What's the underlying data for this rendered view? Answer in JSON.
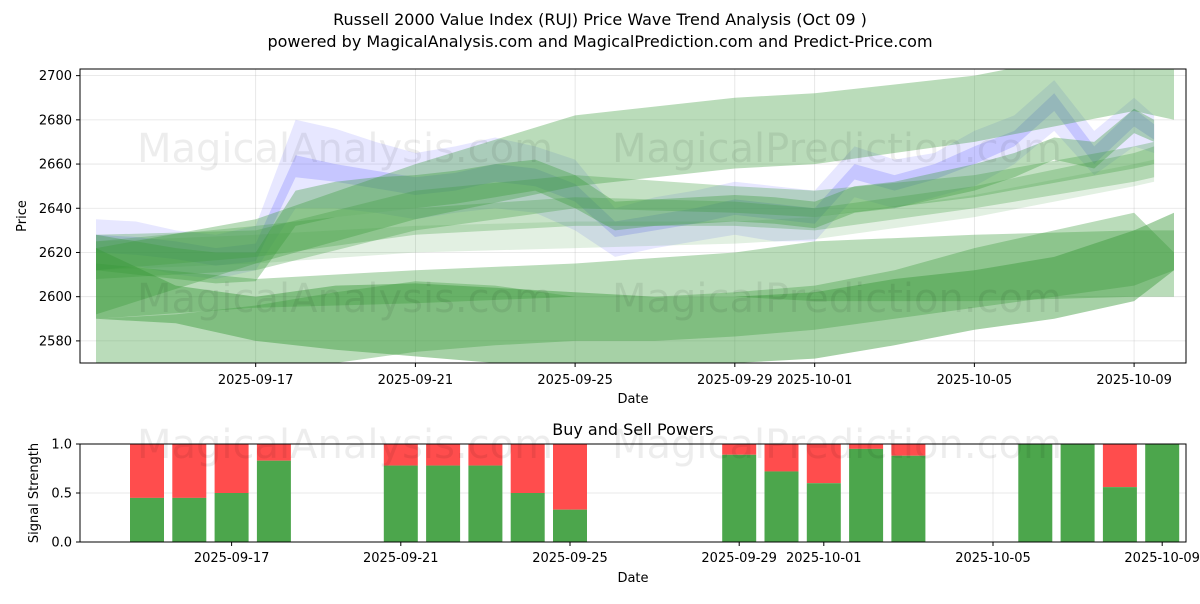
{
  "chart_data": [
    {
      "type": "area",
      "title_line1": "Russell 2000 Value Index (RUJ) Price Wave Trend Analysis (Oct 09 )",
      "title_line2": "powered by MagicalAnalysis.com and MagicalPrediction.com and Predict-Price.com",
      "xlabel": "Date",
      "ylabel": "Price",
      "ylim": [
        2570,
        2703
      ],
      "xlim": [
        -2.4,
        25.3
      ],
      "yticks": [
        2580,
        2600,
        2620,
        2640,
        2660,
        2680,
        2700
      ],
      "xticks": [
        {
          "day": 2,
          "label": "2025-09-17"
        },
        {
          "day": 6,
          "label": "2025-09-21"
        },
        {
          "day": 10,
          "label": "2025-09-25"
        },
        {
          "day": 14,
          "label": "2025-09-29"
        },
        {
          "day": 16,
          "label": "2025-10-01"
        },
        {
          "day": 20,
          "label": "2025-10-05"
        },
        {
          "day": 24,
          "label": "2025-10-09"
        }
      ],
      "grid": true,
      "watermarks": [
        "MagicalAnalysis.com",
        "MagicalPrediction.com"
      ],
      "colors": {
        "blue": "#7b7bff",
        "green": "#3a9a3a"
      },
      "series": [
        {
          "name": "price-wave-blue-outer",
          "color": "blue",
          "opacity": 0.18,
          "x": [
            -2,
            -1,
            0,
            1,
            2,
            3,
            4,
            5,
            6,
            7,
            8,
            9,
            10,
            11,
            12,
            13,
            14,
            15,
            16,
            17,
            18,
            19,
            20,
            21,
            22,
            23,
            24,
            24.5
          ],
          "upper": [
            2635,
            2634,
            2630,
            2628,
            2632,
            2680,
            2676,
            2670,
            2665,
            2668,
            2672,
            2668,
            2662,
            2640,
            2645,
            2648,
            2652,
            2650,
            2648,
            2668,
            2662,
            2665,
            2675,
            2682,
            2698,
            2675,
            2690,
            2682
          ],
          "lower": [
            2612,
            2614,
            2610,
            2608,
            2612,
            2640,
            2640,
            2638,
            2635,
            2638,
            2640,
            2638,
            2630,
            2618,
            2622,
            2625,
            2628,
            2625,
            2625,
            2645,
            2640,
            2645,
            2650,
            2660,
            2675,
            2655,
            2668,
            2665
          ]
        },
        {
          "name": "price-wave-blue-core",
          "color": "blue",
          "opacity": 0.3,
          "x": [
            -2,
            -1,
            0,
            1,
            2,
            3,
            4,
            5,
            6,
            7,
            8,
            9,
            10,
            11,
            12,
            13,
            14,
            15,
            16,
            17,
            18,
            19,
            20,
            21,
            22,
            23,
            24,
            24.5
          ],
          "upper": [
            2628,
            2627,
            2625,
            2622,
            2624,
            2664,
            2660,
            2657,
            2654,
            2656,
            2660,
            2658,
            2651,
            2634,
            2637,
            2640,
            2644,
            2642,
            2640,
            2660,
            2655,
            2660,
            2668,
            2675,
            2692,
            2668,
            2685,
            2678
          ],
          "lower": [
            2620,
            2619,
            2617,
            2614,
            2616,
            2654,
            2652,
            2649,
            2646,
            2648,
            2652,
            2650,
            2643,
            2627,
            2630,
            2633,
            2637,
            2635,
            2633,
            2653,
            2648,
            2653,
            2660,
            2668,
            2684,
            2660,
            2677,
            2671
          ]
        },
        {
          "name": "trend-band-1",
          "color": "green",
          "opacity": 0.35,
          "x": [
            -2,
            2,
            6,
            10,
            14,
            16,
            20,
            24,
            25
          ],
          "upper": [
            2622,
            2635,
            2660,
            2682,
            2690,
            2692,
            2700,
            2714,
            2708
          ],
          "lower": [
            2592,
            2615,
            2635,
            2650,
            2658,
            2660,
            2670,
            2684,
            2680
          ]
        },
        {
          "name": "trend-band-2",
          "color": "green",
          "opacity": 0.3,
          "x": [
            -2,
            2,
            6,
            10,
            14,
            16,
            20,
            24,
            24.5
          ],
          "upper": [
            2628,
            2630,
            2648,
            2655,
            2650,
            2648,
            2655,
            2668,
            2670
          ],
          "lower": [
            2608,
            2612,
            2630,
            2640,
            2638,
            2636,
            2645,
            2658,
            2660
          ]
        },
        {
          "name": "trend-band-3",
          "color": "green",
          "opacity": 0.28,
          "x": [
            -2,
            2,
            6,
            10,
            14,
            16,
            20,
            24,
            24.5
          ],
          "upper": [
            2625,
            2632,
            2640,
            2645,
            2643,
            2640,
            2650,
            2665,
            2668
          ],
          "lower": [
            2612,
            2618,
            2628,
            2632,
            2632,
            2630,
            2640,
            2652,
            2654
          ]
        },
        {
          "name": "trend-band-4",
          "color": "green",
          "opacity": 0.15,
          "x": [
            -2,
            2,
            6,
            10,
            14,
            16,
            20,
            24,
            24.5
          ],
          "upper": [
            2625,
            2628,
            2632,
            2634,
            2634,
            2636,
            2646,
            2660,
            2662
          ],
          "lower": [
            2612,
            2615,
            2620,
            2622,
            2624,
            2626,
            2636,
            2650,
            2652
          ]
        },
        {
          "name": "price-wave-green",
          "color": "green",
          "opacity": 0.35,
          "x": [
            -2,
            -1,
            0,
            1,
            2,
            3,
            4,
            5,
            6,
            7,
            8,
            9,
            10,
            11,
            12,
            13,
            14,
            15,
            16,
            17,
            18,
            19,
            20,
            21,
            22,
            23,
            24,
            24.5
          ],
          "upper": [
            2628,
            2625,
            2622,
            2620,
            2620,
            2648,
            2652,
            2654,
            2655,
            2657,
            2660,
            2662,
            2655,
            2643,
            2644,
            2645,
            2646,
            2645,
            2643,
            2650,
            2652,
            2656,
            2660,
            2665,
            2672,
            2670,
            2685,
            2680
          ],
          "lower": [
            2612,
            2610,
            2608,
            2606,
            2607,
            2632,
            2636,
            2638,
            2640,
            2642,
            2645,
            2648,
            2640,
            2630,
            2632,
            2633,
            2634,
            2633,
            2631,
            2638,
            2640,
            2644,
            2648,
            2654,
            2662,
            2658,
            2674,
            2670
          ]
        },
        {
          "name": "lower-band-1",
          "color": "green",
          "opacity": 0.35,
          "x": [
            -2,
            2,
            6,
            10,
            14,
            16,
            20,
            24,
            25
          ],
          "upper": [
            2615,
            2608,
            2612,
            2615,
            2620,
            2625,
            2628,
            2630,
            2630
          ],
          "lower": [
            2590,
            2595,
            2597,
            2600,
            2600,
            2598,
            2598,
            2600,
            2600
          ]
        },
        {
          "name": "lower-band-2",
          "color": "green",
          "opacity": 0.45,
          "x": [
            -2,
            0,
            2,
            4,
            6,
            8,
            10,
            12,
            14,
            16,
            18,
            20,
            22,
            24,
            25
          ],
          "upper": [
            2622,
            2605,
            2600,
            2605,
            2606,
            2604,
            2602,
            2600,
            2600,
            2602,
            2608,
            2612,
            2618,
            2630,
            2638
          ],
          "lower": [
            2590,
            2588,
            2580,
            2576,
            2573,
            2570,
            2568,
            2568,
            2570,
            2572,
            2578,
            2585,
            2590,
            2598,
            2612
          ]
        },
        {
          "name": "lower-band-3",
          "color": "green",
          "opacity": 0.35,
          "x": [
            -2,
            0,
            2,
            4,
            6,
            8,
            10,
            12,
            14,
            16,
            18,
            20,
            22,
            24,
            25
          ],
          "upper": [
            2590,
            2592,
            2596,
            2602,
            2607,
            2605,
            2600,
            2600,
            2602,
            2605,
            2612,
            2622,
            2630,
            2638,
            2620
          ],
          "lower": [
            2560,
            2562,
            2566,
            2570,
            2575,
            2578,
            2580,
            2580,
            2582,
            2585,
            2590,
            2595,
            2600,
            2605,
            2612
          ]
        }
      ]
    },
    {
      "type": "bar",
      "title": "Buy and Sell Powers",
      "xlabel": "Date",
      "ylabel": "Signal Strength",
      "ylim": [
        0,
        1.0
      ],
      "yticks": [
        {
          "v": 0.0,
          "label": "0.0"
        },
        {
          "v": 0.5,
          "label": "0.5"
        },
        {
          "v": 1.0,
          "label": "1.0"
        }
      ],
      "xticks": [
        {
          "day": 2,
          "label": "2025-09-17"
        },
        {
          "day": 6,
          "label": "2025-09-21"
        },
        {
          "day": 10,
          "label": "2025-09-25"
        },
        {
          "day": 14,
          "label": "2025-09-29"
        },
        {
          "day": 16,
          "label": "2025-10-01"
        },
        {
          "day": 20,
          "label": "2025-10-05"
        },
        {
          "day": 24,
          "label": "2025-10-09"
        }
      ],
      "series": [
        {
          "name": "Buy",
          "color": "#4ca64c"
        },
        {
          "name": "Sell",
          "color": "#ff4d4d"
        }
      ],
      "bars": [
        {
          "day": 0,
          "buy": 0.45
        },
        {
          "day": 1,
          "buy": 0.45
        },
        {
          "day": 2,
          "buy": 0.5
        },
        {
          "day": 3,
          "buy": 0.83
        },
        {
          "day": 6,
          "buy": 0.78
        },
        {
          "day": 7,
          "buy": 0.78
        },
        {
          "day": 8,
          "buy": 0.78
        },
        {
          "day": 9,
          "buy": 0.5
        },
        {
          "day": 10,
          "buy": 0.33
        },
        {
          "day": 14,
          "buy": 0.89
        },
        {
          "day": 15,
          "buy": 0.72
        },
        {
          "day": 16,
          "buy": 0.6
        },
        {
          "day": 17,
          "buy": 0.95
        },
        {
          "day": 18,
          "buy": 0.88
        },
        {
          "day": 21,
          "buy": 1.0
        },
        {
          "day": 22,
          "buy": 1.0
        },
        {
          "day": 23,
          "buy": 0.56
        },
        {
          "day": 24,
          "buy": 1.0
        }
      ]
    }
  ]
}
